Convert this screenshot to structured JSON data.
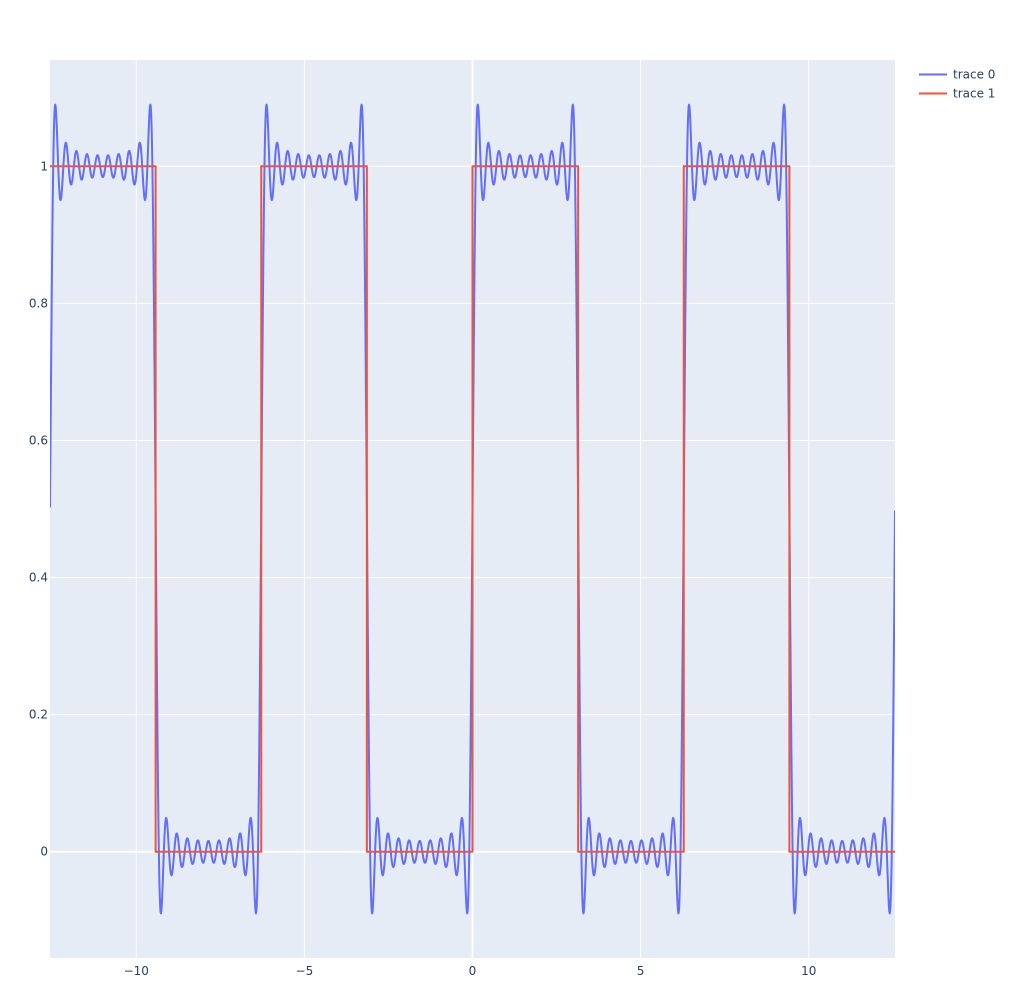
{
  "chart_data": {
    "type": "line",
    "title": "",
    "xlabel": "",
    "ylabel": "",
    "xlim": [
      -12.566,
      12.566
    ],
    "ylim": [
      -0.155,
      1.155
    ],
    "x_ticks": [
      -10,
      -5,
      0,
      5,
      10
    ],
    "x_tick_labels": [
      "−10",
      "−5",
      "0",
      "5",
      "10"
    ],
    "y_ticks": [
      0,
      0.2,
      0.4,
      0.6,
      0.8,
      1
    ],
    "y_tick_labels": [
      "0",
      "0.2",
      "0.4",
      "0.6",
      "0.8",
      "1"
    ],
    "grid": true,
    "legend_position": "top-right",
    "series": [
      {
        "name": "trace 0",
        "color": "#636efa",
        "kind": "fourier-series square wave",
        "formula": "0.5 + (2/pi) * sum_{k=1..N} sin((2k-1)x)/(2k-1)",
        "N": 10,
        "x_range": [
          -12.566,
          12.566
        ]
      },
      {
        "name": "trace 1",
        "color": "#ef553b",
        "kind": "step",
        "x": [
          -12.566,
          -9.425,
          -9.425,
          -6.283,
          -6.283,
          -3.142,
          -3.142,
          0,
          0,
          3.142,
          3.142,
          6.283,
          6.283,
          9.425,
          9.425,
          12.566
        ],
        "y": [
          1,
          1,
          0,
          0,
          1,
          1,
          0,
          0,
          1,
          1,
          0,
          0,
          1,
          1,
          0,
          0
        ]
      }
    ]
  },
  "legend": {
    "items": [
      {
        "label": "trace 0",
        "color": "#636efa"
      },
      {
        "label": "trace 1",
        "color": "#ef553b"
      }
    ]
  }
}
